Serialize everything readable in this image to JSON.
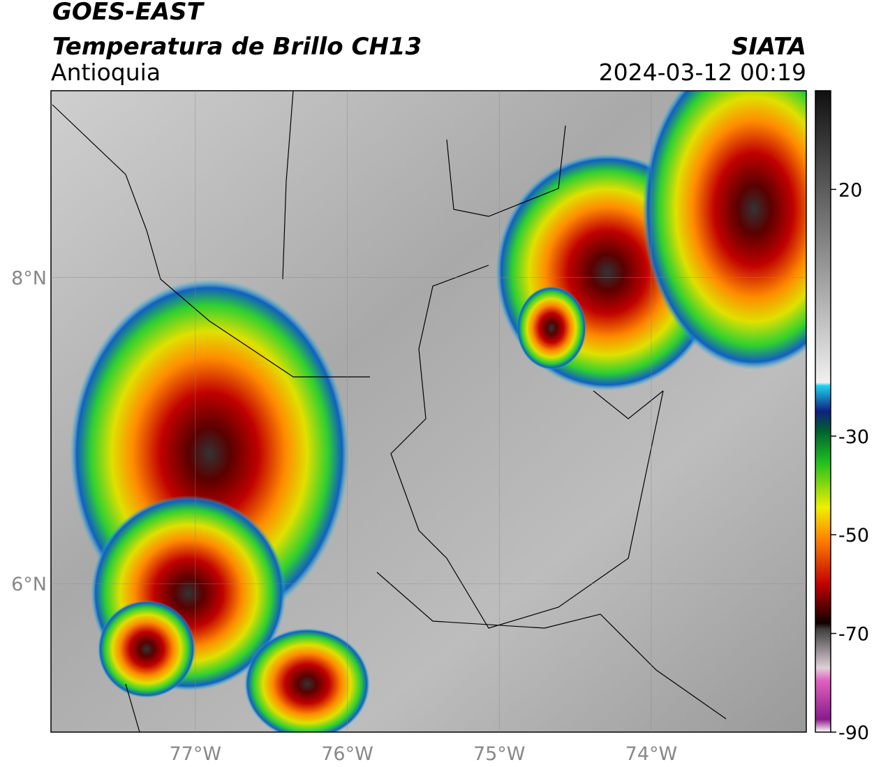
{
  "header": {
    "title": "GOES-EAST",
    "subtitle": "Temperatura de Brillo CH13",
    "region": "Antioquia",
    "source": "SIATA",
    "datetime": "2024-03-12 00:19"
  },
  "map": {
    "xlim": [
      -77.95,
      -72.98
    ],
    "ylim": [
      5.03,
      9.22
    ],
    "xticks": [
      {
        "value": -77,
        "label": "77°W"
      },
      {
        "value": -76,
        "label": "76°W"
      },
      {
        "value": -75,
        "label": "75°W"
      },
      {
        "value": -74,
        "label": "74°W"
      }
    ],
    "yticks": [
      {
        "value": 8,
        "label": "8°N"
      },
      {
        "value": 6,
        "label": "6°N"
      }
    ],
    "grid": true
  },
  "colorbar": {
    "lim": [
      -90,
      40
    ],
    "ticks": [
      20,
      -30,
      -50,
      -70,
      -90
    ]
  }
}
